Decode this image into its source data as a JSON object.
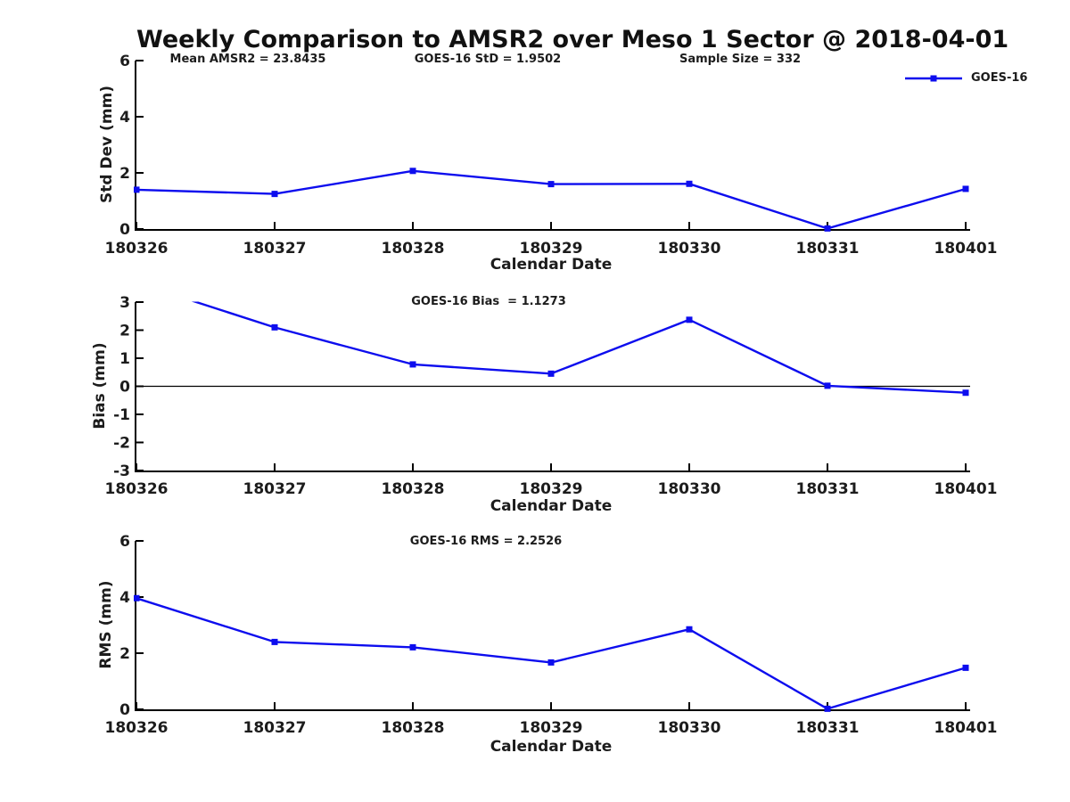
{
  "title": "Weekly Comparison to AMSR2 over Meso 1 Sector @ 2018-04-01",
  "legend": {
    "label": "GOES-16",
    "series_color": "#0d0dee"
  },
  "colors": {
    "line": "#0d0dee",
    "text": "#1c1c1c",
    "axis": "#000000"
  },
  "chart_data": [
    {
      "name": "std-dev-subplot",
      "type": "line",
      "ylabel": "Std Dev (mm)",
      "xlabel": "Calendar Date",
      "ylim": [
        0,
        6
      ],
      "yticks": [
        0,
        2,
        4,
        6
      ],
      "categories": [
        "180326",
        "180327",
        "180328",
        "180329",
        "180330",
        "180331",
        "180401"
      ],
      "series": [
        {
          "name": "GOES-16",
          "color": "#0d0dee",
          "marker": "square",
          "values": [
            1.4,
            1.25,
            2.07,
            1.6,
            1.61,
            0.02,
            1.43
          ]
        }
      ],
      "annotations": [
        "Mean AMSR2 = 23.8435",
        "GOES-16 StD = 1.9502",
        "Sample Size = 332"
      ],
      "zero_line": false,
      "legend_position": "upper right",
      "grid": false
    },
    {
      "name": "bias-subplot",
      "type": "line",
      "ylabel": "Bias (mm)",
      "xlabel": "Calendar Date",
      "ylim": [
        -3,
        3
      ],
      "yticks": [
        -3,
        -2,
        -1,
        0,
        1,
        2,
        3
      ],
      "categories": [
        "180326",
        "180327",
        "180328",
        "180329",
        "180330",
        "180331",
        "180401"
      ],
      "series": [
        {
          "name": "GOES-16",
          "color": "#0d0dee",
          "marker": "square",
          "values": [
            3.69,
            2.1,
            0.78,
            0.45,
            2.37,
            0.02,
            -0.23
          ]
        }
      ],
      "annotations": [
        "GOES-16 Bias  = 1.1273"
      ],
      "zero_line": true,
      "grid": false
    },
    {
      "name": "rms-subplot",
      "type": "line",
      "ylabel": "RMS (mm)",
      "xlabel": "Calendar Date",
      "ylim": [
        0,
        6
      ],
      "yticks": [
        0,
        2,
        4,
        6
      ],
      "categories": [
        "180326",
        "180327",
        "180328",
        "180329",
        "180330",
        "180331",
        "180401"
      ],
      "series": [
        {
          "name": "GOES-16",
          "color": "#0d0dee",
          "marker": "square",
          "values": [
            3.96,
            2.4,
            2.21,
            1.67,
            2.85,
            0.02,
            1.48
          ]
        }
      ],
      "annotations": [
        "GOES-16 RMS = 2.2526"
      ],
      "zero_line": false,
      "grid": false
    }
  ]
}
